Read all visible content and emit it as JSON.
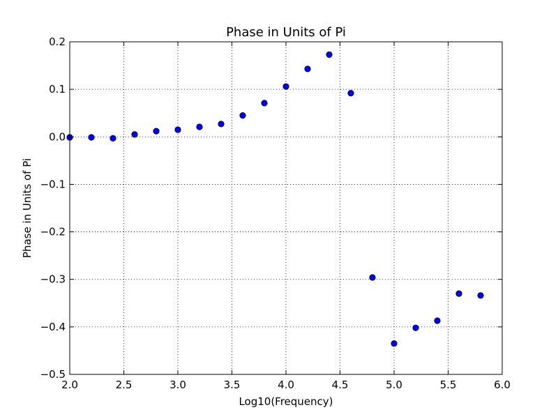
{
  "chart_data": {
    "type": "scatter",
    "title": "Phase in Units of Pi",
    "xlabel": "Log10(Frequency)",
    "ylabel": "Phase in Units of Pi",
    "xlim": [
      2.0,
      6.0
    ],
    "ylim": [
      -0.5,
      0.2
    ],
    "xticks": [
      2.0,
      2.5,
      3.0,
      3.5,
      4.0,
      4.5,
      5.0,
      5.5,
      6.0
    ],
    "xtick_labels": [
      "2.0",
      "2.5",
      "3.0",
      "3.5",
      "4.0",
      "4.5",
      "5.0",
      "5.5",
      "6.0"
    ],
    "yticks": [
      -0.5,
      -0.4,
      -0.3,
      -0.2,
      -0.1,
      0.0,
      0.1,
      0.2
    ],
    "ytick_labels": [
      "−0.5",
      "−0.4",
      "−0.3",
      "−0.2",
      "−0.1",
      "0.0",
      "0.1",
      "0.2"
    ],
    "grid": true,
    "marker_color": "#0000ff",
    "series": [
      {
        "x": [
          2.0,
          2.2,
          2.4,
          2.6,
          2.8,
          3.0,
          3.2,
          3.4,
          3.6,
          3.8,
          4.0,
          4.2,
          4.4,
          4.6,
          4.8,
          5.0,
          5.2,
          5.4,
          5.6,
          5.8
        ],
        "y": [
          -0.001,
          -0.001,
          -0.003,
          0.005,
          0.012,
          0.015,
          0.021,
          0.027,
          0.045,
          0.071,
          0.106,
          0.143,
          0.173,
          0.092,
          -0.296,
          -0.435,
          -0.402,
          -0.387,
          -0.33,
          -0.334
        ]
      }
    ]
  }
}
